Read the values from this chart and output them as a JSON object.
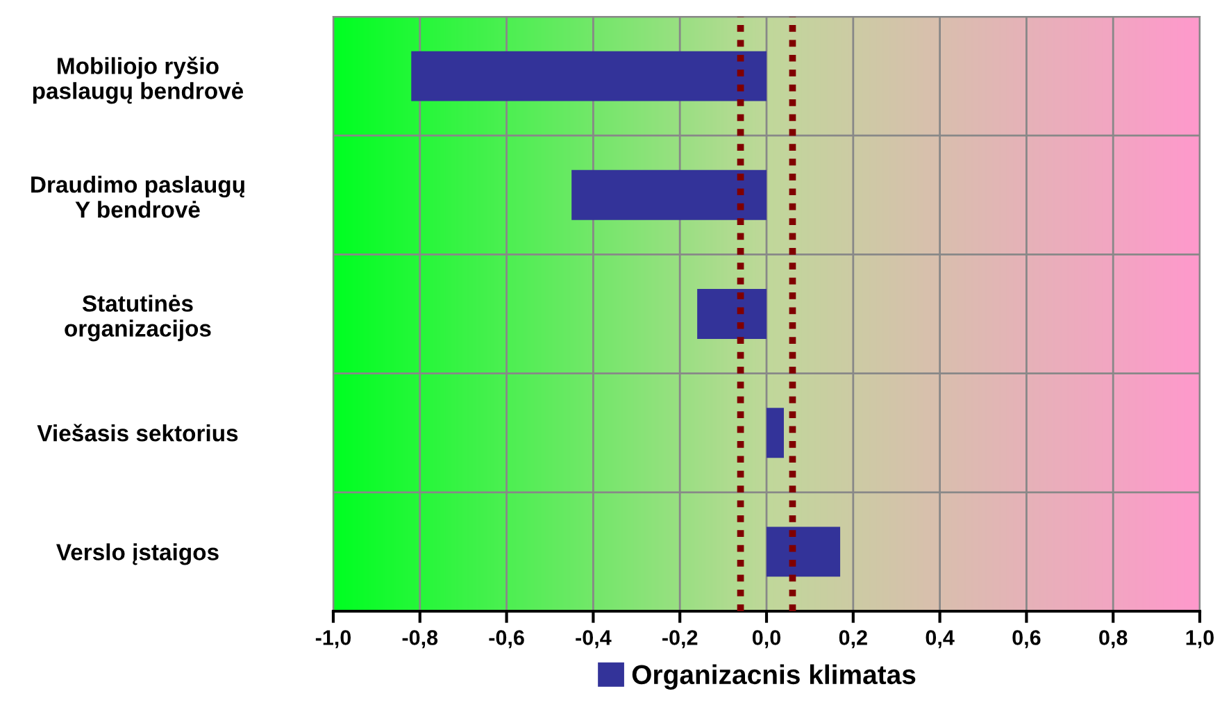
{
  "chart_data": {
    "type": "bar",
    "orientation": "horizontal",
    "categories": [
      "Mobiliojo ryšio\npaslaugų bendrovė",
      "Draudimo paslaugų\nY bendrovė",
      "Statutinės\norganizacijos",
      "Viešasis sektorius",
      "Verslo įstaigos"
    ],
    "series": [
      {
        "name": "Organizacnis klimatas",
        "color": "#333399",
        "values": [
          -0.82,
          -0.45,
          -0.16,
          0.04,
          0.17
        ]
      }
    ],
    "xlim": [
      -1.0,
      1.0
    ],
    "xticks": [
      {
        "value": -1.0,
        "label": "-1,0"
      },
      {
        "value": -0.8,
        "label": "-0,8"
      },
      {
        "value": -0.6,
        "label": "-0,6"
      },
      {
        "value": -0.4,
        "label": "-0,4"
      },
      {
        "value": -0.2,
        "label": "-0,2"
      },
      {
        "value": 0.0,
        "label": "0,0"
      },
      {
        "value": 0.2,
        "label": "0,2"
      },
      {
        "value": 0.4,
        "label": "0,4"
      },
      {
        "value": 0.6,
        "label": "0,6"
      },
      {
        "value": 0.8,
        "label": "0,8"
      },
      {
        "value": 1.0,
        "label": "1,0"
      }
    ],
    "ref_lines": [
      {
        "axis": "x",
        "value": -0.06,
        "color": "#800000",
        "line_style": "dotted"
      },
      {
        "axis": "x",
        "value": 0.06,
        "color": "#800000",
        "line_style": "dotted"
      }
    ],
    "grid": true,
    "legend": "bottom"
  }
}
